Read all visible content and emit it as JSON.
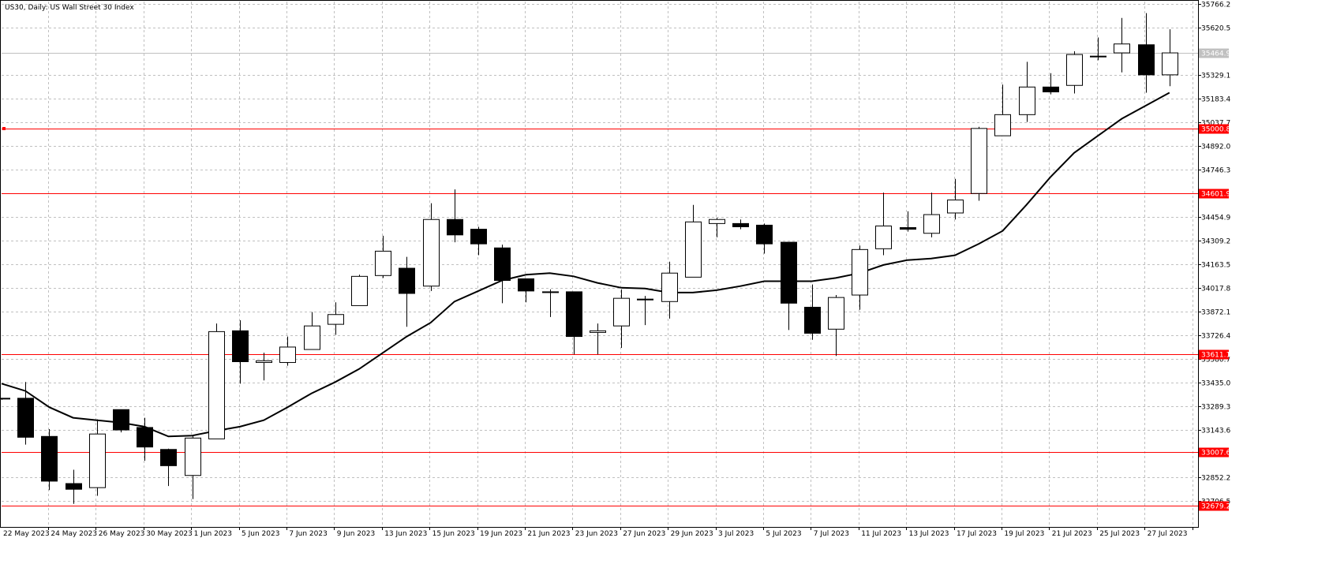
{
  "title": "US30, Daily:  US Wall Street 30 Index",
  "chart_data": {
    "type": "candlestick",
    "symbol": "US30",
    "timeframe": "Daily",
    "description": "US Wall Street 30 Index",
    "grid": true,
    "ylim": [
      32679.2,
      35766.2
    ],
    "y_ticks": [
      "35766.2",
      "35620.5",
      "35329.1",
      "35183.4",
      "35037.7",
      "34892.0",
      "34746.3",
      "34454.9",
      "34309.2",
      "34163.5",
      "34017.8",
      "33872.1",
      "33726.4",
      "33580.7",
      "33435.0",
      "33289.3",
      "33143.6",
      "32852.2",
      "32706.5"
    ],
    "x_labels": [
      "22 May 2023",
      "24 May 2023",
      "26 May 2023",
      "30 May 2023",
      "1 Jun 2023",
      "5 Jun 2023",
      "7 Jun 2023",
      "9 Jun 2023",
      "13 Jun 2023",
      "15 Jun 2023",
      "19 Jun 2023",
      "21 Jun 2023",
      "23 Jun 2023",
      "27 Jun 2023",
      "29 Jun 2023",
      "3 Jul 2023",
      "5 Jul 2023",
      "7 Jul 2023",
      "11 Jul 2023",
      "13 Jul 2023",
      "17 Jul 2023",
      "19 Jul 2023",
      "21 Jul 2023",
      "25 Jul 2023",
      "27 Jul 2023"
    ],
    "candles": [
      {
        "o": 33340,
        "h": 33340,
        "l": 33330,
        "c": 33340
      },
      {
        "o": 33340,
        "h": 33440,
        "l": 33055,
        "c": 33100
      },
      {
        "o": 33105,
        "h": 33150,
        "l": 32775,
        "c": 32830
      },
      {
        "o": 32815,
        "h": 32900,
        "l": 32690,
        "c": 32780
      },
      {
        "o": 32790,
        "h": 33210,
        "l": 32740,
        "c": 33120
      },
      {
        "o": 33270,
        "h": 33270,
        "l": 33130,
        "c": 33145
      },
      {
        "o": 33160,
        "h": 33220,
        "l": 32955,
        "c": 33040
      },
      {
        "o": 33025,
        "h": 33030,
        "l": 32800,
        "c": 32925
      },
      {
        "o": 32865,
        "h": 33110,
        "l": 32720,
        "c": 33095
      },
      {
        "o": 33090,
        "h": 33800,
        "l": 33090,
        "c": 33750
      },
      {
        "o": 33755,
        "h": 33820,
        "l": 33430,
        "c": 33565
      },
      {
        "o": 33560,
        "h": 33620,
        "l": 33450,
        "c": 33570
      },
      {
        "o": 33560,
        "h": 33720,
        "l": 33540,
        "c": 33655
      },
      {
        "o": 33640,
        "h": 33870,
        "l": 33640,
        "c": 33785
      },
      {
        "o": 33795,
        "h": 33930,
        "l": 33730,
        "c": 33855
      },
      {
        "o": 33910,
        "h": 34100,
        "l": 33910,
        "c": 34090
      },
      {
        "o": 34095,
        "h": 34340,
        "l": 34080,
        "c": 34245
      },
      {
        "o": 34140,
        "h": 34210,
        "l": 33780,
        "c": 33985
      },
      {
        "o": 34030,
        "h": 34540,
        "l": 34000,
        "c": 34440
      },
      {
        "o": 34440,
        "h": 34625,
        "l": 34300,
        "c": 34345
      },
      {
        "o": 34380,
        "h": 34395,
        "l": 34220,
        "c": 34290
      },
      {
        "o": 34265,
        "h": 34285,
        "l": 33925,
        "c": 34065
      },
      {
        "o": 34075,
        "h": 34075,
        "l": 33930,
        "c": 34000
      },
      {
        "o": 33995,
        "h": 34010,
        "l": 33840,
        "c": 33995
      },
      {
        "o": 33995,
        "h": 33995,
        "l": 33610,
        "c": 33720
      },
      {
        "o": 33745,
        "h": 33800,
        "l": 33610,
        "c": 33755
      },
      {
        "o": 33785,
        "h": 34010,
        "l": 33650,
        "c": 33955
      },
      {
        "o": 33950,
        "h": 33970,
        "l": 33790,
        "c": 33945
      },
      {
        "o": 33935,
        "h": 34180,
        "l": 33830,
        "c": 34110
      },
      {
        "o": 34085,
        "h": 34530,
        "l": 34085,
        "c": 34425
      },
      {
        "o": 34415,
        "h": 34450,
        "l": 34330,
        "c": 34440
      },
      {
        "o": 34415,
        "h": 34440,
        "l": 34380,
        "c": 34395
      },
      {
        "o": 34405,
        "h": 34415,
        "l": 34230,
        "c": 34290
      },
      {
        "o": 34300,
        "h": 34300,
        "l": 33760,
        "c": 33925
      },
      {
        "o": 33900,
        "h": 34040,
        "l": 33700,
        "c": 33740
      },
      {
        "o": 33765,
        "h": 33975,
        "l": 33600,
        "c": 33960
      },
      {
        "o": 33975,
        "h": 34280,
        "l": 33885,
        "c": 34255
      },
      {
        "o": 34260,
        "h": 34605,
        "l": 34220,
        "c": 34400
      },
      {
        "o": 34390,
        "h": 34490,
        "l": 34365,
        "c": 34380
      },
      {
        "o": 34355,
        "h": 34605,
        "l": 34330,
        "c": 34470
      },
      {
        "o": 34480,
        "h": 34690,
        "l": 34440,
        "c": 34560
      },
      {
        "o": 34600,
        "h": 35010,
        "l": 34555,
        "c": 35000
      },
      {
        "o": 34955,
        "h": 35270,
        "l": 34955,
        "c": 35085
      },
      {
        "o": 35085,
        "h": 35410,
        "l": 35040,
        "c": 35255
      },
      {
        "o": 35255,
        "h": 35340,
        "l": 35210,
        "c": 35225
      },
      {
        "o": 35265,
        "h": 35475,
        "l": 35215,
        "c": 35455
      },
      {
        "o": 35445,
        "h": 35560,
        "l": 35420,
        "c": 35445
      },
      {
        "o": 35465,
        "h": 35680,
        "l": 35345,
        "c": 35520
      },
      {
        "o": 35515,
        "h": 35710,
        "l": 35220,
        "c": 35330
      },
      {
        "o": 35330,
        "h": 35610,
        "l": 35260,
        "c": 35465
      }
    ],
    "moving_average": [
      33430,
      33385,
      33285,
      33220,
      33205,
      33190,
      33165,
      33105,
      33110,
      33140,
      33165,
      33205,
      33285,
      33370,
      33440,
      33520,
      33620,
      33720,
      33805,
      33935,
      34000,
      34065,
      34100,
      34110,
      34090,
      34050,
      34020,
      34015,
      33990,
      33990,
      34005,
      34030,
      34060,
      34060,
      34060,
      34080,
      34110,
      34160,
      34190,
      34200,
      34220,
      34290,
      34370,
      34530,
      34700,
      34850,
      34955,
      35060,
      35140,
      35220
    ],
    "horizontal_levels": [
      "35000.8",
      "34601.9",
      "33611.1",
      "33007.6",
      "32679.2"
    ],
    "last_price": "35464.9",
    "level_color": "#ff0000",
    "bull_color": "#ffffff",
    "bear_color": "#000000",
    "axis_color": "#000000",
    "grid_color": "#c0c0c0",
    "last_price_line_color": "#c0c0c0"
  }
}
